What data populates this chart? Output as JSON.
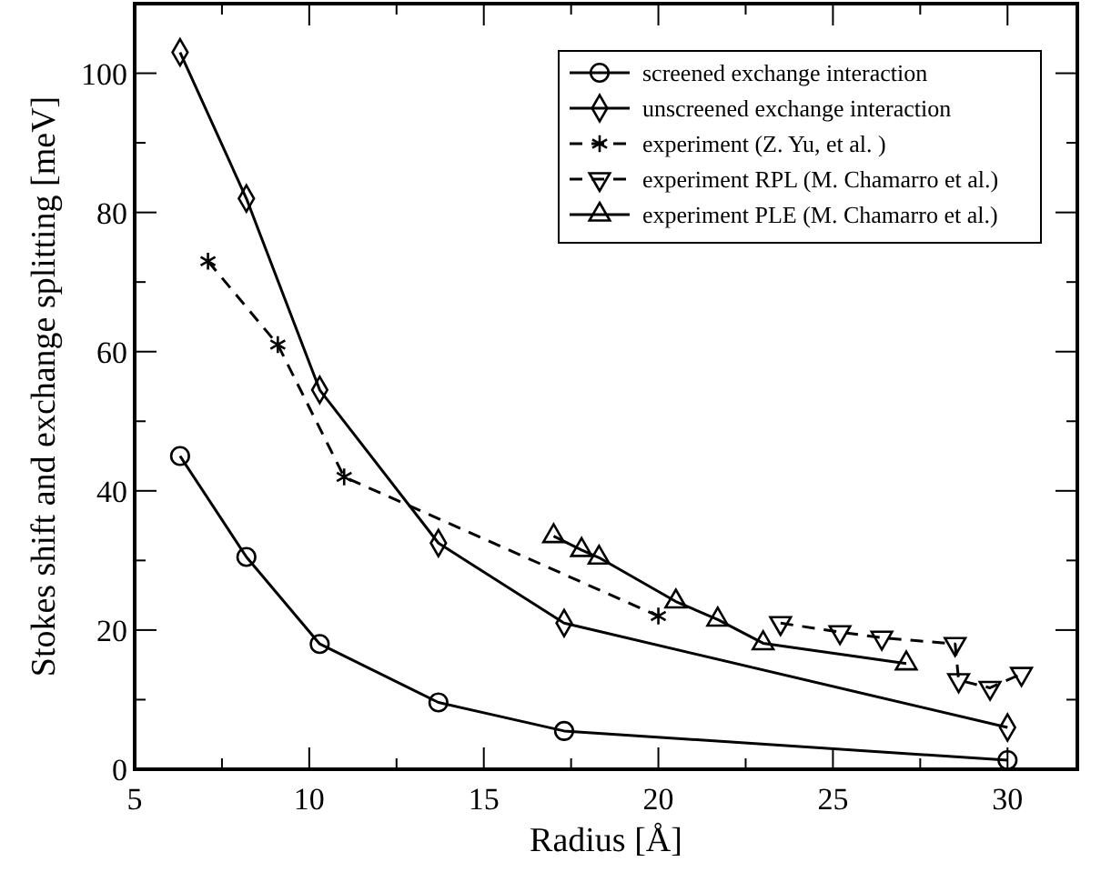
{
  "chart_data": {
    "type": "line",
    "xlabel": "Radius [Å]",
    "ylabel": "Stokes shift and exchange splitting [meV]",
    "xlim": [
      5,
      32
    ],
    "ylim": [
      0,
      110
    ],
    "xticks": [
      5,
      {
        "value": 7.5,
        "label": null
      },
      10,
      {
        "value": 12.5,
        "label": null
      },
      15,
      {
        "value": 17.5,
        "label": null
      },
      20,
      {
        "value": 22.5,
        "label": null
      },
      25,
      {
        "value": 27.5,
        "label": null
      },
      30
    ],
    "yticks": [
      0,
      {
        "value": 10,
        "label": null
      },
      20,
      {
        "value": 30,
        "label": null
      },
      40,
      {
        "value": 50,
        "label": null
      },
      60,
      {
        "value": 70,
        "label": null
      },
      80,
      {
        "value": 90,
        "label": null
      },
      100
    ],
    "legend": "top right",
    "series": [
      {
        "name": "screened exchange interaction",
        "color": "#000000",
        "marker": "circle",
        "line_style": "solid",
        "x": [
          6.3,
          8.2,
          10.3,
          13.7,
          17.3,
          30
        ],
        "values": [
          45,
          30.5,
          18,
          9.6,
          5.5,
          1.3
        ]
      },
      {
        "name": "unscreened exchange interaction",
        "color": "#000000",
        "marker": "diamond",
        "line_style": "solid",
        "x": [
          6.3,
          8.2,
          10.3,
          13.7,
          17.3,
          30
        ],
        "values": [
          103,
          82,
          54.5,
          32.5,
          21,
          6
        ]
      },
      {
        "name": "experiment (Z. Yu, et al. )",
        "color": "#000000",
        "marker": "cross",
        "line_style": "dashed",
        "x": [
          7.1,
          9.1,
          11,
          20
        ],
        "values": [
          73,
          61,
          42,
          22
        ]
      },
      {
        "name": "experiment RPL (M. Chamarro et al.)",
        "color": "#000000",
        "marker": "triangle-down",
        "line_style": "dashed",
        "x": [
          23.5,
          25.2,
          26.4,
          28.5,
          28.6,
          29.5,
          30.4
        ],
        "values": [
          21,
          19.7,
          18.9,
          18,
          12.8,
          11.7,
          13.7
        ]
      },
      {
        "name": "experiment PLE (M. Chamarro et al.)",
        "color": "#000000",
        "marker": "triangle",
        "line_style": "solid",
        "x": [
          17,
          17.8,
          18.3,
          20.5,
          21.7,
          23,
          27.1
        ],
        "values": [
          33.5,
          31.5,
          30.4,
          24.1,
          21.5,
          18.1,
          15.2
        ]
      }
    ]
  }
}
